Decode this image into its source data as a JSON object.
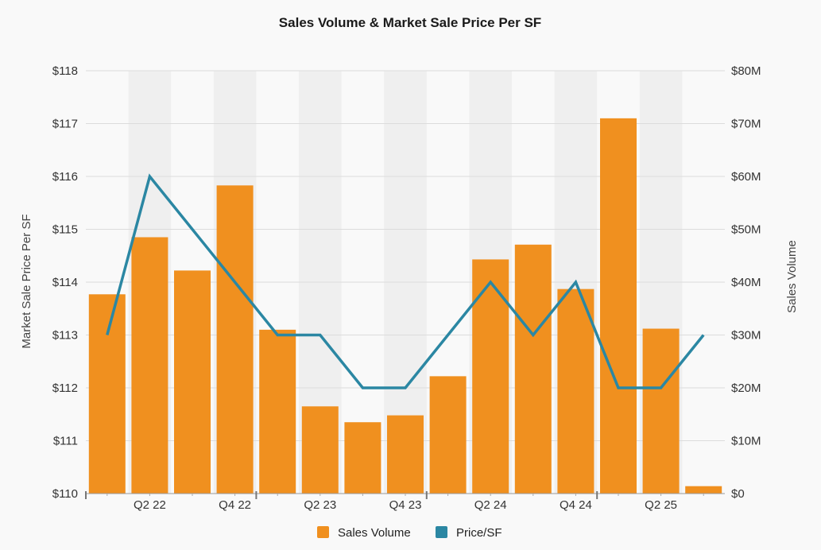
{
  "chart_data": {
    "type": "bar",
    "title": "Sales Volume & Market Sale Price Per SF",
    "left_axis_title": "Market Sale Price Per SF",
    "right_axis_title": "Sales Volume",
    "quarters": [
      "Q1 22",
      "Q2 22",
      "Q3 22",
      "Q4 22",
      "Q1 23",
      "Q2 23",
      "Q3 23",
      "Q4 23",
      "Q1 24",
      "Q2 24",
      "Q3 24",
      "Q4 24",
      "Q1 25",
      "Q2 25",
      "Q3 25"
    ],
    "x_tick_labels": [
      "Q2 22",
      "Q4 22",
      "Q2 23",
      "Q4 23",
      "Q2 24",
      "Q4 24",
      "Q2 25"
    ],
    "left_axis": {
      "min": 110,
      "max": 118,
      "step": 1,
      "ticks": [
        "$110",
        "$111",
        "$112",
        "$113",
        "$114",
        "$115",
        "$116",
        "$117",
        "$118"
      ]
    },
    "right_axis": {
      "min": 0,
      "max": 80,
      "step": 10,
      "ticks": [
        "$0",
        "$10M",
        "$20M",
        "$30M",
        "$40M",
        "$50M",
        "$60M",
        "$70M",
        "$80M"
      ]
    },
    "series": [
      {
        "name": "Sales Volume",
        "type": "bar",
        "axis": "right",
        "unit": "$M",
        "color": "#f0901f",
        "values": [
          37.7,
          48.5,
          42.2,
          58.3,
          31.0,
          16.5,
          13.5,
          14.8,
          22.2,
          44.3,
          47.1,
          38.7,
          71.0,
          31.2,
          1.4
        ]
      },
      {
        "name": "Price/SF",
        "type": "line",
        "axis": "left",
        "unit": "$",
        "color": "#2b87a3",
        "values": [
          113.0,
          116.0,
          115.0,
          114.0,
          113.0,
          113.0,
          112.0,
          112.0,
          113.0,
          114.0,
          113.0,
          114.0,
          112.0,
          112.0,
          113.0
        ]
      }
    ],
    "grid": true,
    "legend_position": "bottom"
  }
}
